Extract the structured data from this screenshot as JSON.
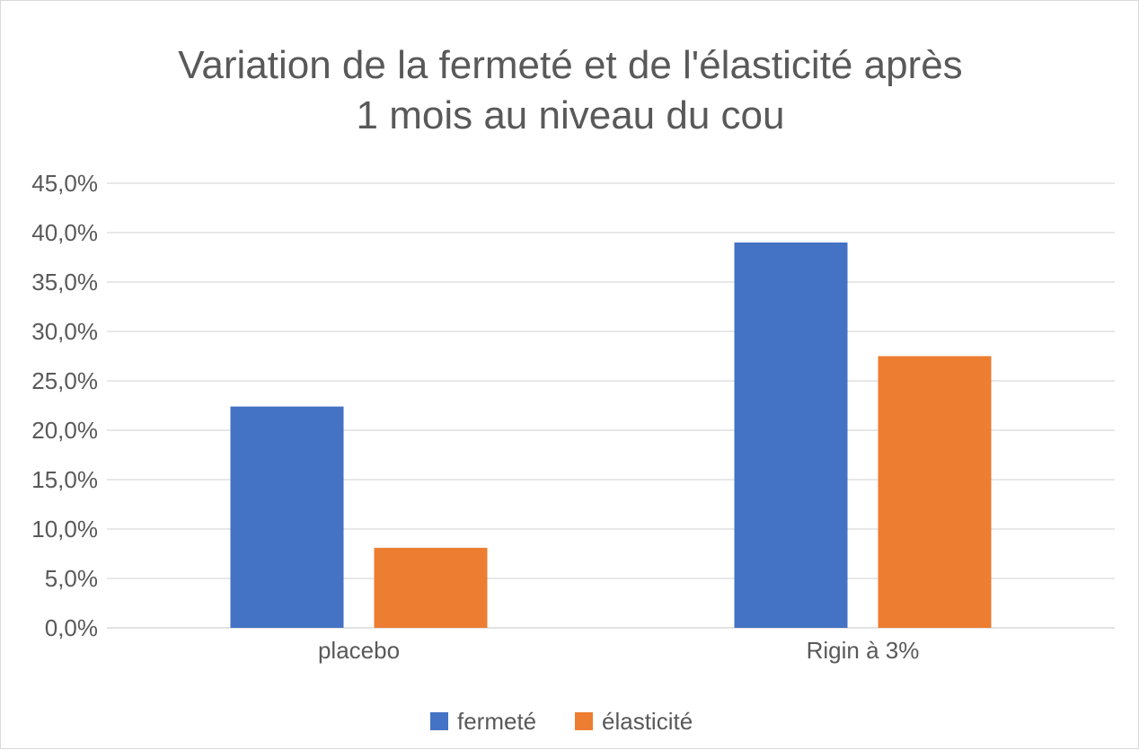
{
  "chart_data": {
    "type": "bar",
    "title_lines": [
      "Variation de la fermeté et de l'élasticité après",
      "1 mois au niveau du cou"
    ],
    "categories": [
      "placebo",
      "Rigin à 3%"
    ],
    "series": [
      {
        "name": "fermeté",
        "values": [
          22.4,
          39.0
        ],
        "color": "#4472C4"
      },
      {
        "name": "élasticité",
        "values": [
          8.1,
          27.5
        ],
        "color": "#ED7D31"
      }
    ],
    "y_ticks": [
      "0,0%",
      "5,0%",
      "10,0%",
      "15,0%",
      "20,0%",
      "25,0%",
      "30,0%",
      "35,0%",
      "40,0%",
      "45,0%"
    ],
    "ylim": [
      0,
      45
    ],
    "grid": true,
    "legend_position": "bottom",
    "colors": {
      "gridline": "#d9d9d9",
      "text": "#595959"
    }
  }
}
